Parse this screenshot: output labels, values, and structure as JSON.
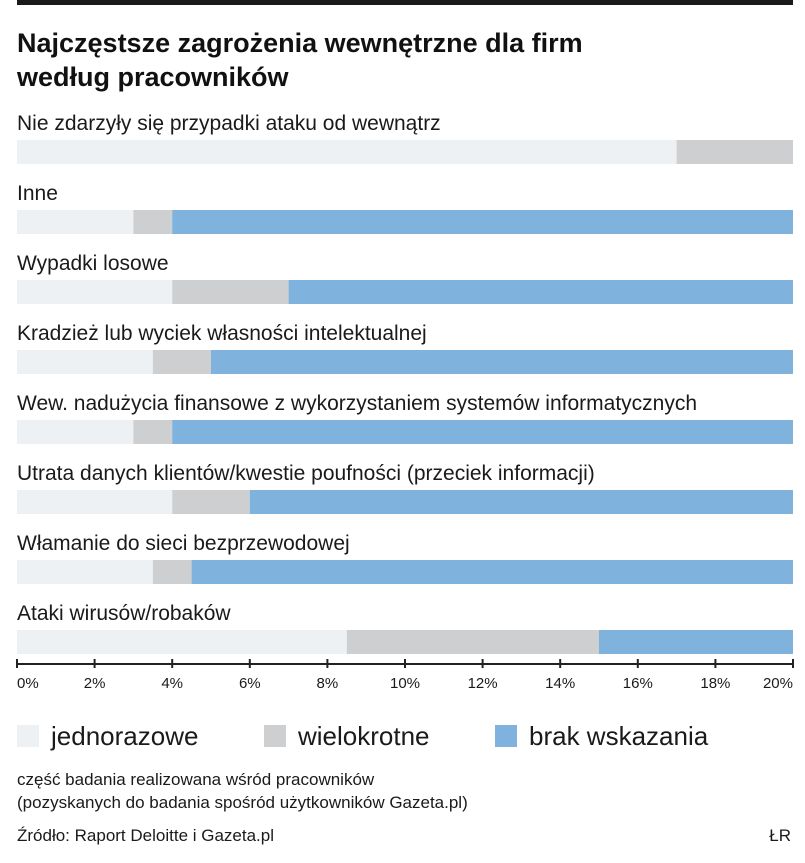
{
  "title_lines": [
    "Najczęstsze zagrożenia wewnętrzne dla firm",
    "według pracowników"
  ],
  "colors": {
    "jednorazowe": "#eef1f4",
    "wielokrotne": "#cdcfd1",
    "brak_wskazania": "#7fb2dc",
    "axis": "#222222",
    "text": "#1a1a1a"
  },
  "legend": {
    "items": [
      {
        "key": "jednorazowe",
        "label": "jednorazowe"
      },
      {
        "key": "wielokrotne",
        "label": "wielokrotne"
      },
      {
        "key": "brak_wskazania",
        "label": "brak wskazania"
      }
    ]
  },
  "note_lines": [
    "część badania realizowana wśród pracowników",
    "(pozyskanych do badania spośród użytkowników Gazeta.pl)"
  ],
  "source": "Źródło: Raport Deloitte i Gazeta.pl",
  "initials": "ŁR",
  "chart_data": {
    "type": "bar",
    "orientation": "horizontal",
    "stacked": true,
    "xlim": [
      0,
      20
    ],
    "ticks": [
      "0%",
      "2%",
      "4%",
      "6%",
      "8%",
      "10%",
      "12%",
      "14%",
      "16%",
      "18%",
      "20%"
    ],
    "categories": [
      "Nie zdarzyły się przypadki ataku od wewnątrz",
      "Inne",
      "Wypadki losowe",
      "Kradzież lub wyciek własności intelektualnej",
      "Wew. nadużycia finansowe z wykorzystaniem systemów informatycznych",
      "Utrata danych klientów/kwestie poufności (przeciek informacji)",
      "Włamanie do sieci bezprzewodowej",
      "Ataki wirusów/robaków"
    ],
    "series": [
      {
        "name": "jednorazowe",
        "values": [
          17,
          3,
          4,
          3.5,
          3,
          4,
          3.5,
          8.5
        ]
      },
      {
        "name": "wielokrotne",
        "values": [
          3,
          1,
          3,
          1.5,
          1,
          2,
          1,
          6.5
        ]
      },
      {
        "name": "brak wskazania",
        "values": [
          0,
          16,
          13,
          15,
          16,
          14,
          15.5,
          5
        ]
      }
    ],
    "grid": false,
    "legend_position": "bottom"
  }
}
